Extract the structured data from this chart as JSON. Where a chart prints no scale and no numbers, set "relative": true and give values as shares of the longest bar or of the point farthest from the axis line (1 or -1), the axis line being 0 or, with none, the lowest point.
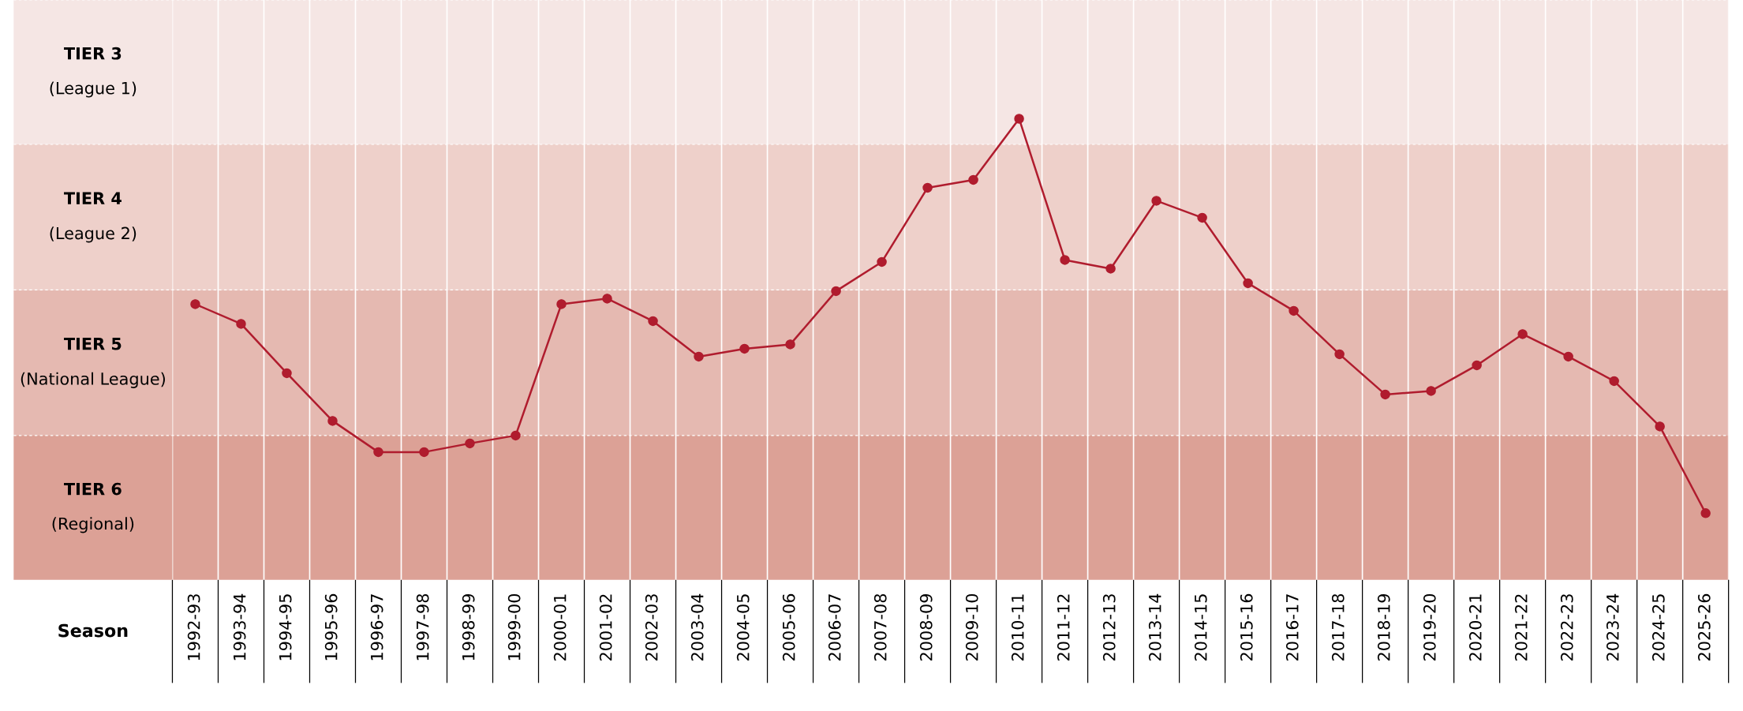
{
  "chart_data": {
    "type": "line",
    "relative": true,
    "xlabel": "Season",
    "categories": [
      "1992-93",
      "1993-94",
      "1994-95",
      "1995-96",
      "1996-97",
      "1997-98",
      "1998-99",
      "1999-00",
      "2000-01",
      "2001-02",
      "2002-03",
      "2003-04",
      "2004-05",
      "2005-06",
      "2006-07",
      "2007-08",
      "2008-09",
      "2009-10",
      "2010-11",
      "2011-12",
      "2012-13",
      "2013-14",
      "2014-15",
      "2015-16",
      "2016-17",
      "2017-18",
      "2018-19",
      "2019-20",
      "2020-21",
      "2021-22",
      "2022-23",
      "2023-24",
      "2024-25",
      "2025-26"
    ],
    "series": [
      {
        "color": "#b01c2e",
        "values": [
          0.53,
          0.48,
          0.355,
          0.234,
          0.155,
          0.155,
          0.177,
          0.197,
          0.53,
          0.544,
          0.487,
          0.397,
          0.417,
          0.428,
          0.563,
          0.637,
          0.825,
          0.845,
          1,
          0.642,
          0.62,
          0.792,
          0.749,
          0.583,
          0.513,
          0.403,
          0.301,
          0.31,
          0.375,
          0.454,
          0.397,
          0.335,
          0.22,
          0
        ]
      }
    ],
    "bands": [
      {
        "axis": "y",
        "from": 0.935,
        "to": 1.301,
        "label": "TIER 3\n(League 1)",
        "color": "#f5e6e4"
      },
      {
        "axis": "y",
        "from": 0.566,
        "to": 0.935,
        "label": "TIER 4\n(League 2)",
        "color": "#eed0ca"
      },
      {
        "axis": "y",
        "from": 0.197,
        "to": 0.566,
        "label": "TIER 5\n(National League)",
        "color": "#e5b9b1"
      },
      {
        "axis": "y",
        "from": -0.169,
        "to": 0.197,
        "label": "TIER 6\n(Regional)",
        "color": "#dca196"
      }
    ],
    "marker": "circle",
    "line_style": "solid",
    "grid": "x"
  }
}
